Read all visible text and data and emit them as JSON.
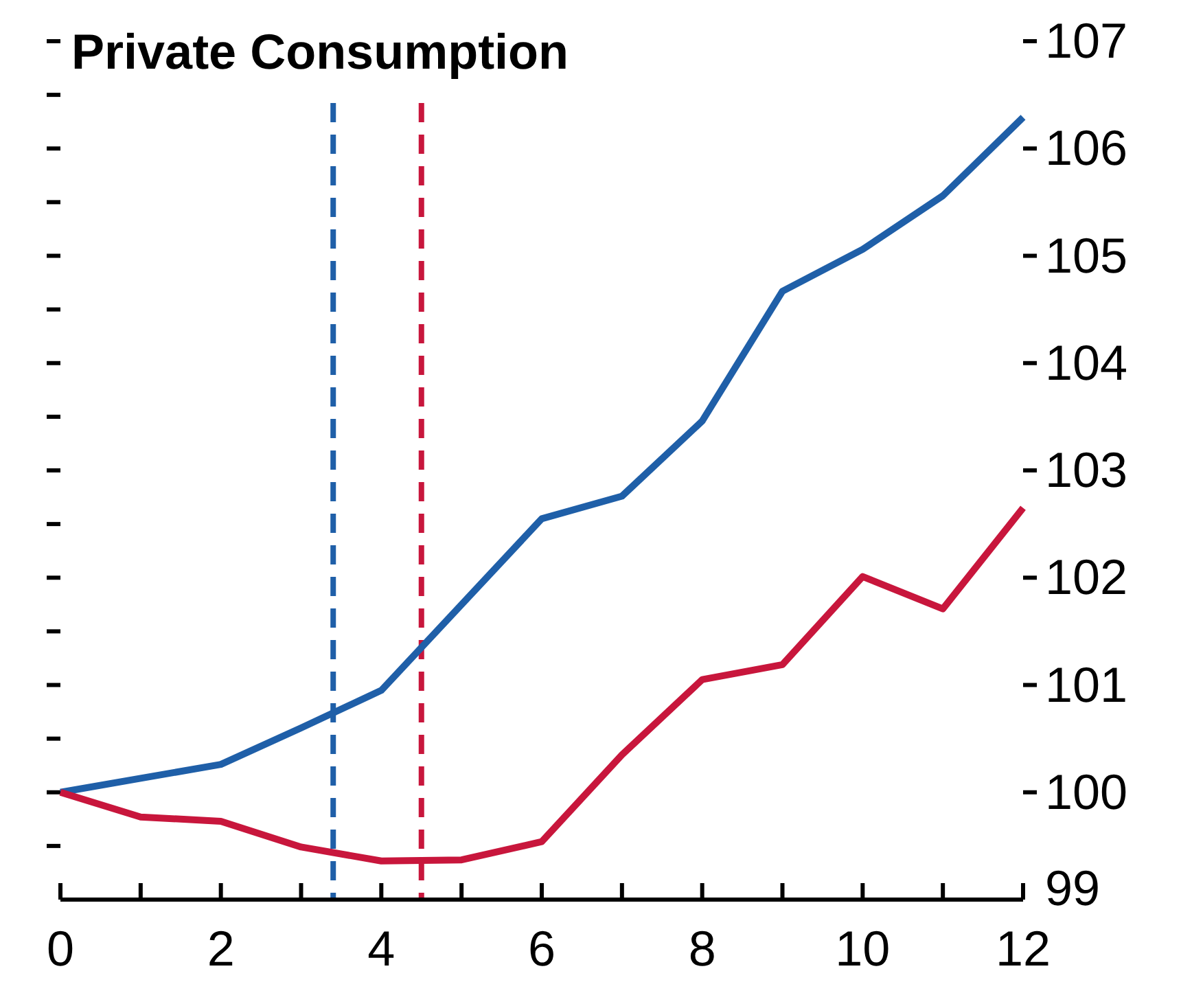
{
  "chart_data": {
    "type": "line",
    "title": "Private Consumption",
    "x": [
      0,
      1,
      2,
      3,
      4,
      5,
      6,
      7,
      8,
      9,
      10,
      11,
      12
    ],
    "series": [
      {
        "color": "#1f5fa8",
        "values": [
          100,
          100.13,
          100.26,
          100.6,
          100.95,
          101.75,
          102.55,
          102.76,
          103.46,
          104.67,
          105.06,
          105.56,
          106.29
        ]
      },
      {
        "color": "#c8163c",
        "values": [
          100,
          99.77,
          99.73,
          99.49,
          99.36,
          99.37,
          99.54,
          100.35,
          101.05,
          101.19,
          102.01,
          101.71,
          102.65
        ]
      }
    ],
    "xlim": [
      0,
      12
    ],
    "xticks": [
      0,
      {
        "value": 1,
        "label": null
      },
      2,
      {
        "value": 3,
        "label": null
      },
      4,
      {
        "value": 5,
        "label": null
      },
      6,
      {
        "value": 7,
        "label": null
      },
      8,
      {
        "value": 9,
        "label": null
      },
      10,
      {
        "value": 11,
        "label": null
      },
      12
    ],
    "ylim": [
      99,
      107
    ],
    "yticks": [
      99,
      {
        "value": 99.5,
        "label": null
      },
      100,
      {
        "value": 100.5,
        "label": null
      },
      101,
      {
        "value": 101.5,
        "label": null
      },
      102,
      {
        "value": 102.5,
        "label": null
      },
      103,
      {
        "value": 103.5,
        "label": null
      },
      104,
      {
        "value": 104.5,
        "label": null
      },
      105,
      {
        "value": 105.5,
        "label": null
      },
      106,
      {
        "value": 106.5,
        "label": null
      },
      107
    ],
    "ref_lines": [
      {
        "axis": "x",
        "value": 3.4,
        "color": "#1f5fa8",
        "line_style": "dashed"
      },
      {
        "axis": "x",
        "value": 4.5,
        "color": "#c8163c",
        "line_style": "dashed"
      }
    ],
    "grid": false,
    "marker": "none",
    "line_style": "solid"
  }
}
